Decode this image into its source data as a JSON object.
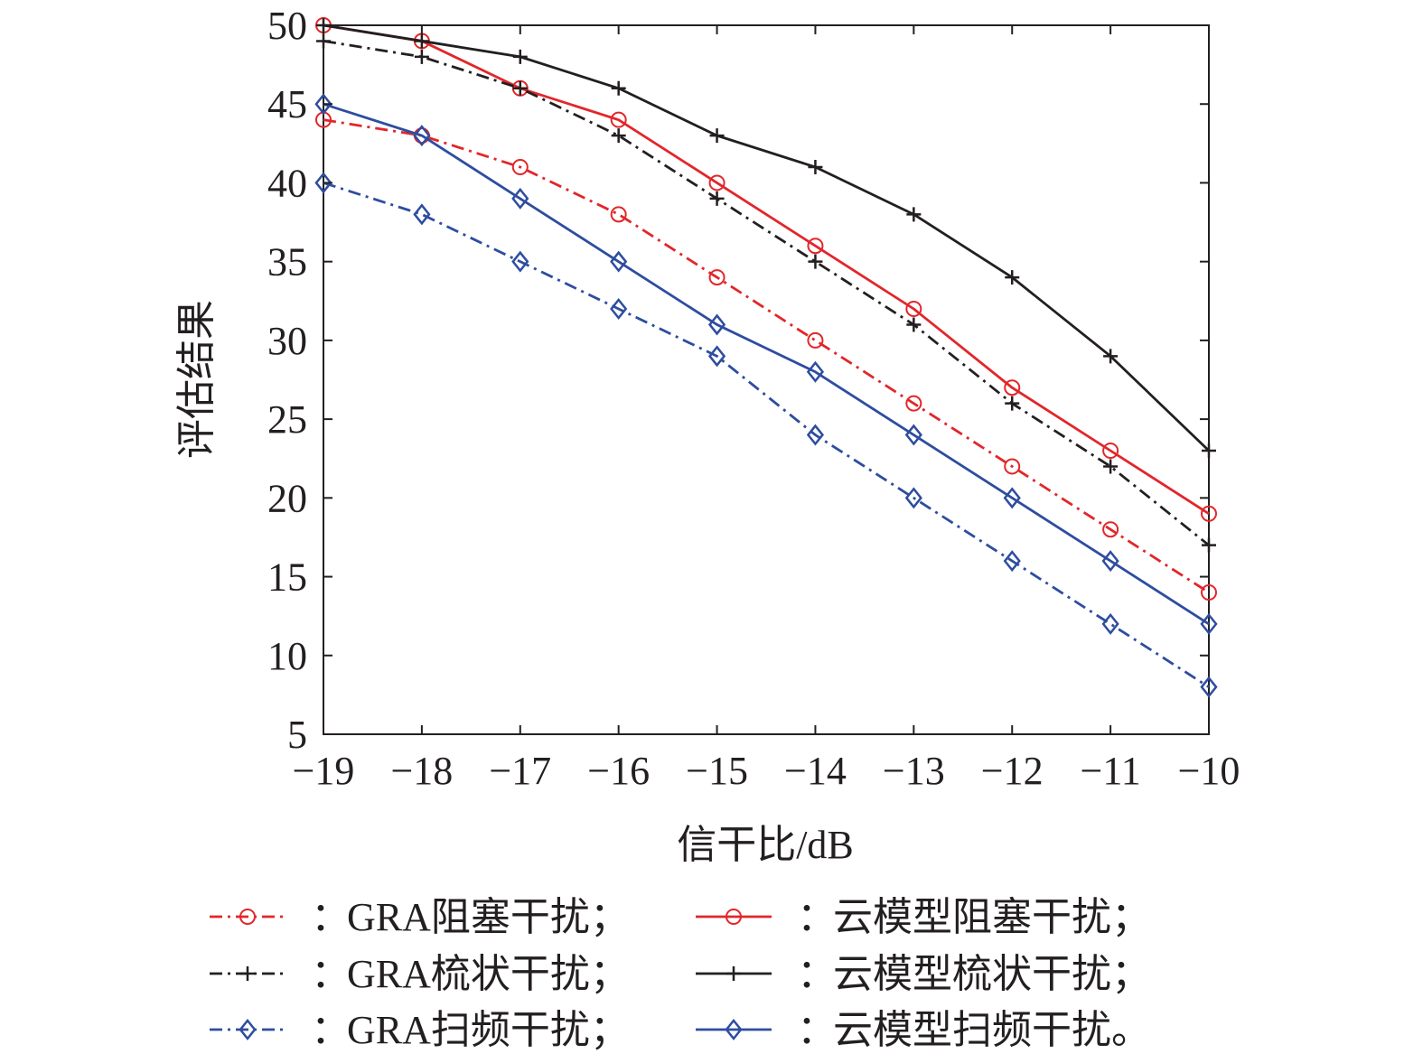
{
  "chart_data": {
    "type": "line",
    "title": "",
    "xlabel": "信干比/dB",
    "ylabel": "评估结果",
    "x": [
      -19,
      -18,
      -17,
      -16,
      -15,
      -14,
      -13,
      -12,
      -11,
      -10
    ],
    "x_tick_labels": [
      "−19",
      "−18",
      "−17",
      "−16",
      "−15",
      "−14",
      "−13",
      "−12",
      "−11",
      "−10"
    ],
    "xlim": [
      -19,
      -10
    ],
    "ylim": [
      5,
      50
    ],
    "y_ticks": [
      5,
      10,
      15,
      20,
      25,
      30,
      35,
      40,
      45,
      50
    ],
    "y_tick_labels": [
      "5",
      "10",
      "15",
      "20",
      "25",
      "30",
      "35",
      "40",
      "45",
      "50"
    ],
    "grid": false,
    "legend_position": "bottom",
    "legend_separator": "：",
    "series": [
      {
        "name": "GRA阻塞干扰",
        "legend_label": "GRA阻塞干扰；",
        "color": "#e2262a",
        "dash": "dashdot",
        "marker": "circle",
        "values": [
          44,
          43,
          41,
          38,
          34,
          30,
          26,
          22,
          18,
          14
        ]
      },
      {
        "name": "云模型阻塞干扰",
        "legend_label": "云模型阻塞干扰；",
        "color": "#e2262a",
        "dash": "solid",
        "marker": "circle",
        "values": [
          50,
          49,
          46,
          44,
          40,
          36,
          32,
          27,
          23,
          19
        ]
      },
      {
        "name": "GRA梳状干扰",
        "legend_label": "GRA梳状干扰；",
        "color": "#231f20",
        "dash": "dashdot",
        "marker": "plus",
        "values": [
          49,
          48,
          46,
          43,
          39,
          35,
          31,
          26,
          22,
          17
        ]
      },
      {
        "name": "云模型梳状干扰",
        "legend_label": "云模型梳状干扰；",
        "color": "#231f20",
        "dash": "solid",
        "marker": "plus",
        "values": [
          50,
          49,
          48,
          46,
          43,
          41,
          38,
          34,
          29,
          23
        ]
      },
      {
        "name": "GRA扫频干扰",
        "legend_label": "GRA扫频干扰；",
        "color": "#2e4da0",
        "dash": "dashdot",
        "marker": "diamond",
        "values": [
          40,
          38,
          35,
          32,
          29,
          24,
          20,
          16,
          12,
          8
        ]
      },
      {
        "name": "云模型扫频干扰",
        "legend_label": "云模型扫频干扰。",
        "color": "#2e4da0",
        "dash": "solid",
        "marker": "diamond",
        "values": [
          45,
          43,
          39,
          35,
          31,
          28,
          24,
          20,
          16,
          12
        ]
      }
    ]
  }
}
